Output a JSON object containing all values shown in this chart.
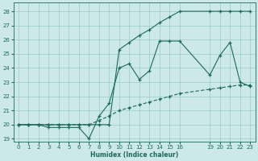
{
  "xlabel": "Humidex (Indice chaleur)",
  "bg_color": "#cce8e8",
  "grid_color": "#99cccc",
  "line_color": "#1a6b5a",
  "xlim": [
    -0.5,
    23.5
  ],
  "ylim": [
    18.8,
    28.6
  ],
  "yticks": [
    19,
    20,
    21,
    22,
    23,
    24,
    25,
    26,
    27,
    28
  ],
  "xticks": [
    0,
    1,
    2,
    3,
    4,
    5,
    6,
    7,
    8,
    9,
    10,
    11,
    12,
    13,
    14,
    15,
    16,
    19,
    20,
    21,
    22,
    23
  ],
  "line1_x": [
    0,
    1,
    2,
    3,
    4,
    5,
    6,
    7,
    8,
    9,
    10,
    11,
    12,
    13,
    14,
    15,
    16,
    19,
    20,
    21,
    22,
    23
  ],
  "line1_y": [
    20.0,
    20.0,
    20.0,
    20.0,
    20.0,
    20.0,
    20.0,
    20.0,
    20.0,
    20.0,
    25.3,
    25.8,
    26.3,
    26.7,
    27.2,
    27.6,
    28.0,
    28.0,
    28.0,
    28.0,
    28.0,
    28.0
  ],
  "line2_x": [
    0,
    1,
    2,
    3,
    4,
    5,
    6,
    7,
    8,
    9,
    10,
    11,
    12,
    13,
    14,
    15,
    16,
    19,
    20,
    21,
    22,
    23
  ],
  "line2_y": [
    20.0,
    20.0,
    20.0,
    19.8,
    19.8,
    19.8,
    19.8,
    19.0,
    20.6,
    21.5,
    24.0,
    24.3,
    23.2,
    23.8,
    25.9,
    25.9,
    25.9,
    23.5,
    24.9,
    25.8,
    23.0,
    22.7
  ],
  "line3_x": [
    0,
    1,
    2,
    3,
    4,
    5,
    6,
    7,
    8,
    9,
    10,
    11,
    12,
    13,
    14,
    15,
    16,
    19,
    20,
    21,
    22,
    23
  ],
  "line3_y": [
    20.0,
    20.0,
    20.0,
    20.0,
    20.0,
    20.0,
    20.0,
    20.0,
    20.3,
    20.6,
    21.0,
    21.2,
    21.4,
    21.6,
    21.8,
    22.0,
    22.2,
    22.5,
    22.6,
    22.7,
    22.8,
    22.8
  ]
}
